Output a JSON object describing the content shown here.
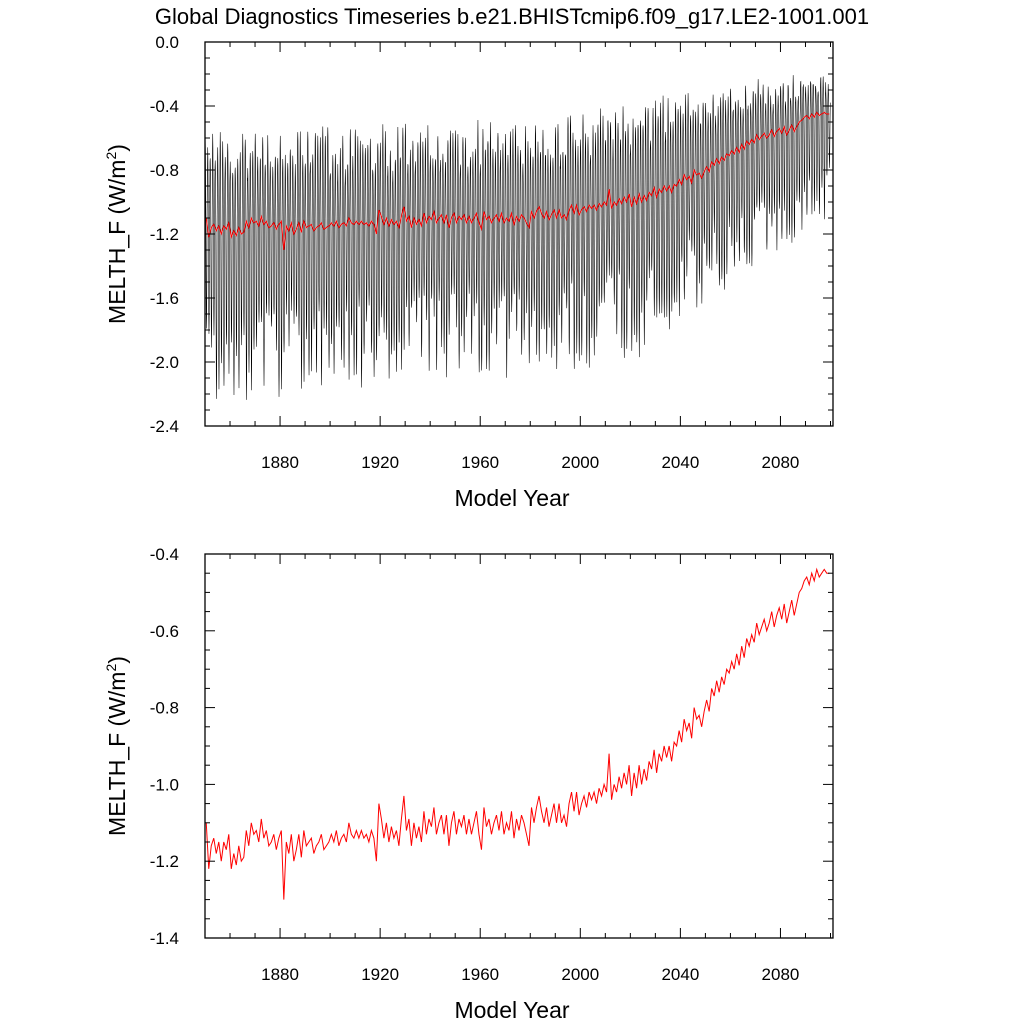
{
  "figure": {
    "title": "Global Diagnostics Timeseries b.e21.BHISTcmip6.f09_g17.LE2-1001.001"
  },
  "colors": {
    "monthly": "#000000",
    "annual": "#ff0000",
    "frame": "#000000",
    "background": "#ffffff"
  },
  "chart_data": [
    {
      "type": "line",
      "panel": "top",
      "xlabel": "Model Year",
      "ylabel_base": "MELTH_F (W/m",
      "ylabel_sup": "2",
      "ylabel_close": ")",
      "xlim": [
        1850,
        2101
      ],
      "ylim": [
        -2.4,
        0.0
      ],
      "xticks": [
        "1880",
        "1920",
        "1960",
        "2000",
        "2040",
        "2080"
      ],
      "yticks": [
        "0.0",
        "-0.4",
        "-0.8",
        "-1.2",
        "-1.6",
        "-2.0",
        "-2.4"
      ],
      "grid": false,
      "legend": "none",
      "series": [
        {
          "style": "monthly",
          "seasonal_envelope": {
            "x": [
              1850,
              1880,
              1920,
              1960,
              2000,
              2020,
              2040,
              2060,
              2080,
              2100
            ],
            "max": [
              -0.55,
              -0.52,
              -0.52,
              -0.5,
              -0.45,
              -0.4,
              -0.33,
              -0.28,
              -0.23,
              -0.2
            ],
            "min": [
              -2.25,
              -2.25,
              -2.2,
              -2.15,
              -2.05,
              -2.0,
              -1.8,
              -1.55,
              -1.3,
              -1.05
            ]
          }
        },
        {
          "style": "annual",
          "source": "annual_mean"
        }
      ]
    },
    {
      "type": "line",
      "panel": "bottom",
      "xlabel": "Model Year",
      "ylabel_base": "MELTH_F (W/m",
      "ylabel_sup": "2",
      "ylabel_close": ")",
      "xlim": [
        1850,
        2101
      ],
      "ylim": [
        -1.4,
        -0.4
      ],
      "xticks": [
        "1880",
        "1920",
        "1960",
        "2000",
        "2040",
        "2080"
      ],
      "yticks": [
        "-0.4",
        "-0.6",
        "-0.8",
        "-1.0",
        "-1.2",
        "-1.4"
      ],
      "grid": false,
      "legend": "none",
      "series": [
        {
          "style": "annual",
          "source": "annual_mean"
        }
      ]
    }
  ],
  "annual_mean": {
    "x_start": 1850,
    "y": [
      -1.1,
      -1.22,
      -1.16,
      -1.14,
      -1.18,
      -1.15,
      -1.2,
      -1.15,
      -1.17,
      -1.13,
      -1.22,
      -1.18,
      -1.21,
      -1.16,
      -1.2,
      -1.19,
      -1.12,
      -1.16,
      -1.1,
      -1.13,
      -1.12,
      -1.15,
      -1.09,
      -1.14,
      -1.12,
      -1.16,
      -1.15,
      -1.13,
      -1.17,
      -1.14,
      -1.12,
      -1.3,
      -1.15,
      -1.18,
      -1.13,
      -1.2,
      -1.17,
      -1.13,
      -1.19,
      -1.12,
      -1.16,
      -1.15,
      -1.14,
      -1.18,
      -1.16,
      -1.15,
      -1.13,
      -1.17,
      -1.16,
      -1.15,
      -1.13,
      -1.15,
      -1.12,
      -1.16,
      -1.14,
      -1.13,
      -1.15,
      -1.1,
      -1.13,
      -1.14,
      -1.12,
      -1.14,
      -1.12,
      -1.14,
      -1.13,
      -1.15,
      -1.12,
      -1.14,
      -1.2,
      -1.05,
      -1.09,
      -1.14,
      -1.1,
      -1.15,
      -1.11,
      -1.14,
      -1.12,
      -1.16,
      -1.09,
      -1.03,
      -1.12,
      -1.09,
      -1.16,
      -1.1,
      -1.14,
      -1.11,
      -1.15,
      -1.07,
      -1.13,
      -1.09,
      -1.11,
      -1.06,
      -1.13,
      -1.1,
      -1.08,
      -1.13,
      -1.08,
      -1.16,
      -1.1,
      -1.07,
      -1.13,
      -1.09,
      -1.11,
      -1.08,
      -1.13,
      -1.09,
      -1.13,
      -1.1,
      -1.07,
      -1.13,
      -1.17,
      -1.06,
      -1.11,
      -1.09,
      -1.13,
      -1.1,
      -1.08,
      -1.12,
      -1.07,
      -1.13,
      -1.1,
      -1.12,
      -1.07,
      -1.14,
      -1.09,
      -1.12,
      -1.08,
      -1.1,
      -1.13,
      -1.16,
      -1.06,
      -1.1,
      -1.06,
      -1.03,
      -1.07,
      -1.1,
      -1.06,
      -1.11,
      -1.08,
      -1.05,
      -1.1,
      -1.05,
      -1.1,
      -1.08,
      -1.11,
      -1.05,
      -1.02,
      -1.07,
      -1.02,
      -1.08,
      -1.05,
      -1.03,
      -1.06,
      -1.02,
      -1.04,
      -1.02,
      -1.05,
      -1.01,
      -1.03,
      -1.0,
      -1.02,
      -0.92,
      -1.04,
      -1.0,
      -1.02,
      -0.98,
      -1.01,
      -0.97,
      -1.0,
      -0.95,
      -1.03,
      -0.97,
      -1.01,
      -0.95,
      -1.0,
      -0.96,
      -0.99,
      -0.94,
      -0.96,
      -0.91,
      -0.97,
      -0.92,
      -0.94,
      -0.9,
      -0.93,
      -0.9,
      -0.94,
      -0.89,
      -0.9,
      -0.86,
      -0.89,
      -0.83,
      -0.86,
      -0.84,
      -0.88,
      -0.8,
      -0.83,
      -0.82,
      -0.85,
      -0.81,
      -0.78,
      -0.81,
      -0.75,
      -0.77,
      -0.73,
      -0.76,
      -0.72,
      -0.74,
      -0.7,
      -0.71,
      -0.68,
      -0.7,
      -0.66,
      -0.69,
      -0.64,
      -0.67,
      -0.62,
      -0.64,
      -0.61,
      -0.63,
      -0.58,
      -0.61,
      -0.59,
      -0.57,
      -0.6,
      -0.58,
      -0.55,
      -0.59,
      -0.56,
      -0.54,
      -0.57,
      -0.53,
      -0.58,
      -0.55,
      -0.52,
      -0.56,
      -0.53,
      -0.5,
      -0.49,
      -0.47,
      -0.46,
      -0.48,
      -0.45,
      -0.47,
      -0.44,
      -0.46,
      -0.45,
      -0.44,
      -0.45,
      -0.45
    ]
  }
}
